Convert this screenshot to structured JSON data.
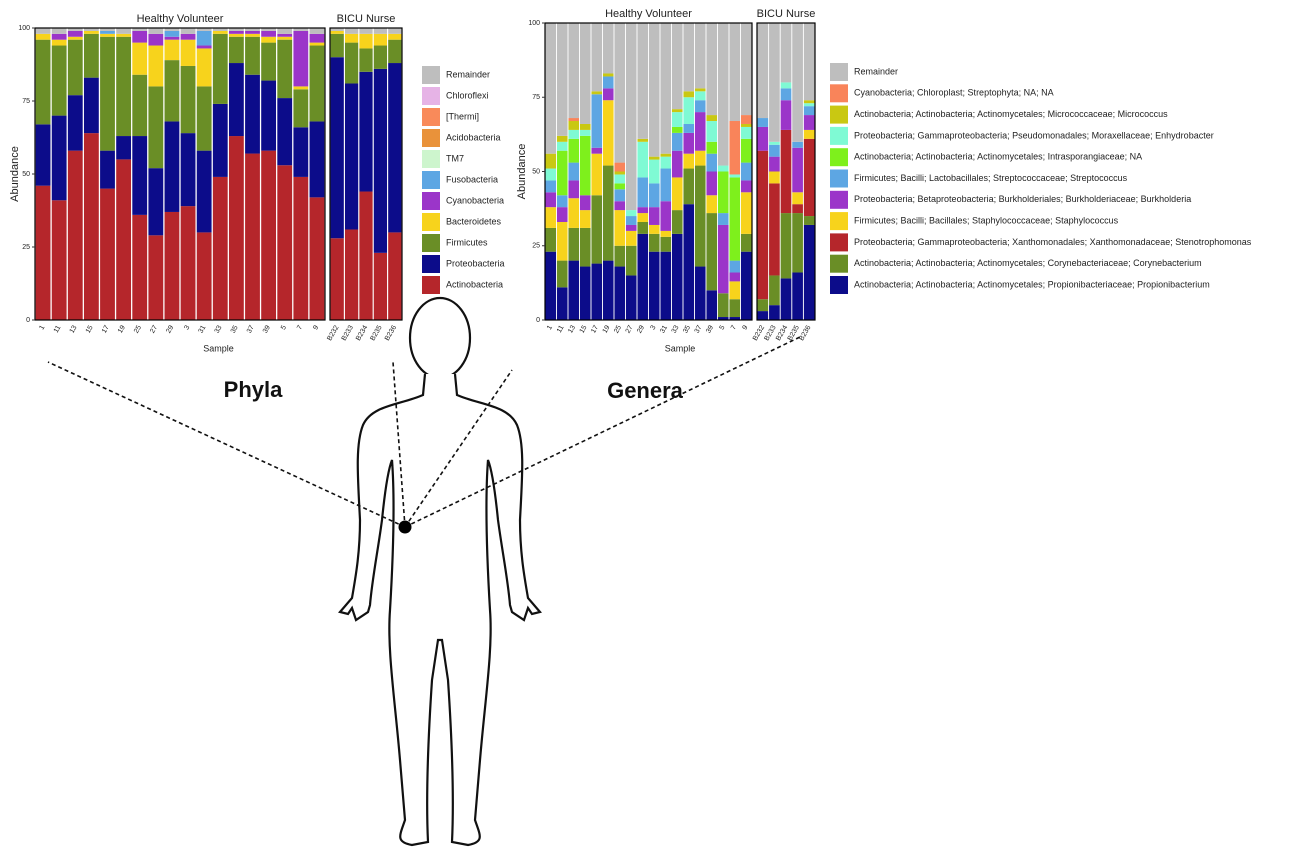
{
  "chart_data": [
    {
      "type": "bar",
      "stacked": true,
      "x_label": "Sample",
      "y_label": "Abundance",
      "panels": [
        {
          "label": "Healthy Volunteer",
          "categories": [
            "1",
            "11",
            "13",
            "15",
            "17",
            "19",
            "25",
            "27",
            "29",
            "3",
            "31",
            "33",
            "35",
            "37",
            "39",
            "5",
            "7",
            "9"
          ]
        },
        {
          "label": "BICU Nurse",
          "categories": [
            "B232",
            "B233",
            "B234",
            "B235",
            "B236"
          ]
        }
      ],
      "ylim": [
        0,
        100
      ],
      "yticks": [
        0,
        25,
        50,
        75,
        100
      ],
      "series": [
        {
          "name": "Actinobacteria",
          "color": "#b5262b",
          "values": [
            46,
            41,
            58,
            64,
            45,
            55,
            36,
            29,
            37,
            39,
            30,
            49,
            63,
            57,
            58,
            53,
            49,
            42,
            28,
            31,
            44,
            23,
            30
          ]
        },
        {
          "name": "Proteobacteria",
          "color": "#0c0c8a",
          "values": [
            21,
            29,
            19,
            19,
            13,
            8,
            27,
            23,
            31,
            25,
            28,
            25,
            25,
            27,
            24,
            23,
            17,
            26,
            62,
            50,
            41,
            63,
            58
          ]
        },
        {
          "name": "Firmicutes",
          "color": "#6a8e26",
          "values": [
            29,
            24,
            19,
            15,
            39,
            34,
            21,
            28,
            21,
            23,
            22,
            24,
            9,
            13,
            13,
            20,
            13,
            26,
            8,
            14,
            8,
            8,
            8
          ]
        },
        {
          "name": "Bacteroidetes",
          "color": "#f7d31c",
          "values": [
            2,
            2,
            1,
            1,
            1,
            1,
            11,
            14,
            7,
            9,
            13,
            1,
            1,
            1,
            2,
            1,
            1,
            1,
            1,
            3,
            5,
            4,
            2
          ]
        },
        {
          "name": "Cyanobacteria",
          "color": "#9b35c9",
          "values": [
            0,
            2,
            2,
            0,
            0,
            0,
            4,
            4,
            1,
            2,
            1,
            0,
            1,
            1,
            2,
            1,
            19,
            3,
            0,
            0,
            0,
            0,
            0
          ]
        },
        {
          "name": "Fusobacteria",
          "color": "#5da6e3",
          "values": [
            0,
            0,
            0,
            0,
            1,
            0,
            0,
            0,
            2,
            0,
            5,
            0,
            0,
            0,
            0,
            0,
            0,
            0,
            0,
            0,
            0,
            0,
            0
          ]
        },
        {
          "name": "TM7",
          "color": "#cdf5cd",
          "values": [
            0,
            0,
            0,
            0,
            0,
            0,
            0,
            0,
            0,
            0,
            0,
            0,
            0,
            0,
            0,
            0,
            0,
            0,
            0,
            0,
            0,
            0,
            0
          ]
        },
        {
          "name": "Acidobacteria",
          "color": "#e9923a",
          "values": [
            0,
            0,
            0,
            0,
            0,
            0,
            0,
            0,
            0,
            0,
            0,
            0,
            0,
            0,
            0,
            0,
            0,
            0,
            0,
            0,
            0,
            0,
            0
          ]
        },
        {
          "name": "[Thermi]",
          "color": "#f98a5a",
          "values": [
            0,
            0,
            0,
            0,
            0,
            0,
            0,
            0,
            0,
            0,
            0,
            0,
            0,
            0,
            0,
            0,
            0,
            0,
            0,
            0,
            0,
            0,
            0
          ]
        },
        {
          "name": "Chloroflexi",
          "color": "#e6b3e6",
          "values": [
            0,
            0,
            0,
            0,
            0,
            0,
            0,
            0,
            0,
            0,
            0,
            0,
            0,
            0,
            0,
            0,
            0,
            0,
            0,
            0,
            0,
            0,
            0
          ]
        },
        {
          "name": "Remainder",
          "color": "#bebebe",
          "values": [
            2,
            2,
            1,
            1,
            1,
            2,
            1,
            2,
            1,
            2,
            1,
            1,
            1,
            1,
            1,
            2,
            1,
            2,
            1,
            2,
            2,
            2,
            2
          ]
        }
      ]
    },
    {
      "type": "bar",
      "stacked": true,
      "x_label": "Sample",
      "y_label": "Abundance",
      "panels": [
        {
          "label": "Healthy Volunteer",
          "categories": [
            "1",
            "11",
            "13",
            "15",
            "17",
            "19",
            "25",
            "27",
            "29",
            "3",
            "31",
            "33",
            "35",
            "37",
            "39",
            "5",
            "7",
            "9"
          ]
        },
        {
          "label": "BICU Nurse",
          "categories": [
            "B232",
            "B233",
            "B234",
            "B235",
            "B236"
          ]
        }
      ],
      "ylim": [
        0,
        100
      ],
      "yticks": [
        0,
        25,
        50,
        75,
        100
      ],
      "series": [
        {
          "name": "Actinobacteria; Actinobacteria; Actinomycetales; Propionibacteriaceae; Propionibacterium",
          "color": "#0c0c8a",
          "values": [
            23,
            11,
            20,
            18,
            19,
            20,
            18,
            15,
            29,
            23,
            23,
            29,
            39,
            18,
            10,
            1,
            1,
            23,
            3,
            5,
            14,
            16,
            32
          ]
        },
        {
          "name": "Actinobacteria; Actinobacteria; Actinomycetales; Corynebacteriaceae; Corynebacterium",
          "color": "#6a8e26",
          "values": [
            8,
            9,
            11,
            13,
            23,
            32,
            7,
            10,
            4,
            6,
            5,
            8,
            12,
            34,
            26,
            8,
            6,
            6,
            4,
            10,
            22,
            20,
            3
          ]
        },
        {
          "name": "Proteobacteria; Gammaproteobacteria; Xanthomonadales; Xanthomonadaceae; Stenotrophomonas",
          "color": "#b5262b",
          "values": [
            0,
            0,
            0,
            0,
            0,
            0,
            0,
            0,
            0,
            0,
            0,
            0,
            0,
            0,
            0,
            0,
            0,
            0,
            50,
            31,
            28,
            3,
            26
          ]
        },
        {
          "name": "Firmicutes; Bacilli; Bacillales; Staphylococcaceae; Staphylococcus",
          "color": "#f7d31c",
          "values": [
            7,
            13,
            10,
            6,
            14,
            22,
            12,
            5,
            3,
            3,
            2,
            11,
            5,
            5,
            6,
            0,
            6,
            14,
            0,
            4,
            0,
            4,
            3
          ]
        },
        {
          "name": "Proteobacteria; Betaproteobacteria; Burkholderiales; Burkholderiaceae; Burkholderia",
          "color": "#9b35c9",
          "values": [
            5,
            5,
            6,
            5,
            2,
            4,
            3,
            2,
            2,
            6,
            10,
            9,
            7,
            13,
            8,
            23,
            3,
            4,
            8,
            5,
            10,
            15,
            5
          ]
        },
        {
          "name": "Firmicutes; Bacilli; Lactobacillales; Streptococcaceae; Streptococcus",
          "color": "#5da6e3",
          "values": [
            4,
            4,
            6,
            0,
            18,
            4,
            4,
            3,
            10,
            8,
            11,
            6,
            3,
            4,
            6,
            4,
            4,
            6,
            3,
            4,
            4,
            2,
            3
          ]
        },
        {
          "name": "Actinobacteria; Actinobacteria; Actinomycetales; Intrasporangiaceae; NA",
          "color": "#7ef01c",
          "values": [
            0,
            15,
            8,
            20,
            0,
            0,
            2,
            0,
            0,
            0,
            0,
            2,
            0,
            0,
            4,
            14,
            28,
            8,
            0,
            0,
            0,
            0,
            0
          ]
        },
        {
          "name": "Proteobacteria; Gammaproteobacteria; Pseudomonadales; Moraxellaceae; Enhydrobacter",
          "color": "#7ffad4",
          "values": [
            4,
            3,
            3,
            2,
            0,
            0,
            3,
            2,
            12,
            8,
            4,
            5,
            9,
            3,
            7,
            2,
            1,
            4,
            0,
            1,
            2,
            0,
            1
          ]
        },
        {
          "name": "Actinobacteria; Actinobacteria; Actinomycetales; Micrococcaceae; Micrococcus",
          "color": "#c9c812",
          "values": [
            5,
            2,
            3,
            2,
            1,
            1,
            1,
            0,
            1,
            1,
            1,
            1,
            2,
            1,
            2,
            0,
            0,
            1,
            0,
            0,
            0,
            0,
            1
          ]
        },
        {
          "name": "Cyanobacteria; Chloroplast; Streptophyta; NA; NA",
          "color": "#f9845a",
          "values": [
            0,
            0,
            1,
            0,
            0,
            0,
            3,
            0,
            0,
            0,
            0,
            0,
            0,
            0,
            0,
            0,
            18,
            3,
            0,
            0,
            0,
            0,
            0
          ]
        },
        {
          "name": "Remainder",
          "color": "#bebebe",
          "values": [
            44,
            38,
            32,
            34,
            23,
            17,
            47,
            63,
            39,
            45,
            44,
            29,
            23,
            22,
            31,
            48,
            33,
            31,
            32,
            40,
            20,
            40,
            26
          ]
        }
      ]
    }
  ],
  "figure": {
    "labels": {
      "phyla": "Phyla",
      "genera": "Genera"
    }
  }
}
